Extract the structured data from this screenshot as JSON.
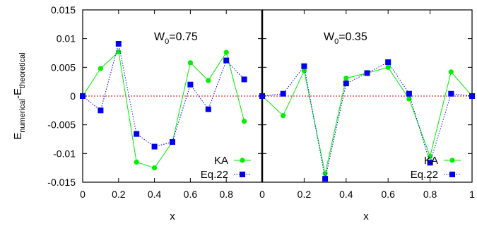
{
  "chart_data": [
    {
      "type": "line",
      "title": "W₀=0.75",
      "title_parts": {
        "base": "W",
        "sub": "0",
        "rest": "=0.75"
      },
      "xlabel": "x",
      "ylabel": "E_numerical-E_theoretical",
      "ylabel_parts": {
        "base": "E",
        "sub1": "numerical",
        "mid": "-E",
        "sub2": "theoretical"
      },
      "xlim": [
        0,
        1
      ],
      "ylim": [
        -0.015,
        0.015
      ],
      "x_ticks": [
        0,
        0.2,
        0.4,
        0.6,
        0.8
      ],
      "x_tick_labels": [
        "0",
        "0.2",
        "0.4",
        "0.6",
        "0.8"
      ],
      "y_ticks": [
        -0.015,
        -0.01,
        -0.005,
        0,
        0.005,
        0.01,
        0.015
      ],
      "y_tick_labels": [
        "-0.015",
        "-0.01",
        "-0.005",
        "0",
        "0.005",
        "0.01",
        "0.015"
      ],
      "zero_line": true,
      "legend_position": "bottom-right",
      "series": [
        {
          "name": "KA",
          "color": "#00ee00",
          "marker": "circle",
          "line": "solid",
          "x": [
            0,
            0.1,
            0.2,
            0.3,
            0.4,
            0.5,
            0.6,
            0.7,
            0.8,
            0.9
          ],
          "y": [
            0,
            0.0048,
            0.0077,
            -0.0115,
            -0.0125,
            -0.008,
            0.0058,
            0.0027,
            0.0076,
            -0.0044
          ]
        },
        {
          "name": "Eq.22",
          "color": "#0000ee",
          "marker": "square",
          "line": "dotted",
          "x": [
            0,
            0.1,
            0.2,
            0.3,
            0.4,
            0.5,
            0.6,
            0.7,
            0.8,
            0.9
          ],
          "y": [
            0,
            -0.0025,
            0.0091,
            -0.0066,
            -0.0088,
            -0.008,
            0.002,
            -0.0023,
            0.0062,
            0.0029
          ]
        }
      ]
    },
    {
      "type": "line",
      "title": "W₀=0.35",
      "title_parts": {
        "base": "W",
        "sub": "0",
        "rest": "=0.35"
      },
      "xlabel": "x",
      "xlim": [
        0,
        1
      ],
      "ylim": [
        -0.015,
        0.015
      ],
      "x_ticks": [
        0,
        0.2,
        0.4,
        0.6,
        0.8,
        1
      ],
      "x_tick_labels": [
        "0",
        "0.2",
        "0.4",
        "0.6",
        "0.8",
        "1"
      ],
      "zero_line": true,
      "legend_position": "bottom-right",
      "series": [
        {
          "name": "KA",
          "color": "#00ee00",
          "marker": "circle",
          "line": "solid",
          "x": [
            0,
            0.1,
            0.2,
            0.3,
            0.4,
            0.5,
            0.6,
            0.7,
            0.8,
            0.9,
            1.0
          ],
          "y": [
            0,
            -0.0034,
            0.0044,
            -0.0135,
            0.0031,
            0.004,
            0.005,
            -0.0005,
            -0.0105,
            0.0042,
            0
          ]
        },
        {
          "name": "Eq.22",
          "color": "#0000ee",
          "marker": "square",
          "line": "dotted",
          "x": [
            0,
            0.1,
            0.2,
            0.3,
            0.4,
            0.5,
            0.6,
            0.7,
            0.8,
            0.9,
            1.0
          ],
          "y": [
            0,
            0.0004,
            0.0052,
            -0.0144,
            0.0022,
            0.004,
            0.0059,
            0.0004,
            -0.0116,
            0.0004,
            0
          ]
        }
      ]
    }
  ]
}
